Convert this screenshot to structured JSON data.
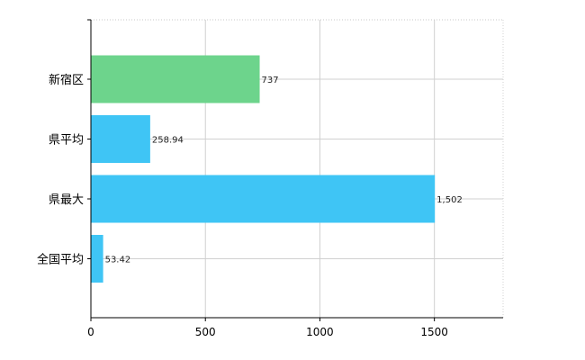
{
  "chart_data": {
    "type": "bar",
    "orientation": "horizontal",
    "categories": [
      "新宿区",
      "県平均",
      "県最大",
      "全国平均"
    ],
    "values": [
      737,
      258.94,
      1502,
      53.42
    ],
    "value_labels": [
      "737",
      "258.94",
      "1,502",
      "53.42"
    ],
    "bar_colors": [
      "#6dd48c",
      "#3fc5f5",
      "#3fc5f5",
      "#3fc5f5"
    ],
    "title": "",
    "xlabel": "",
    "ylabel": "",
    "xlim": [
      0,
      1800
    ],
    "x_ticks": [
      0,
      500,
      1000,
      1500
    ],
    "x_tick_labels": [
      "0",
      "500",
      "1000",
      "1500"
    ],
    "grid": true,
    "legend": "none"
  }
}
